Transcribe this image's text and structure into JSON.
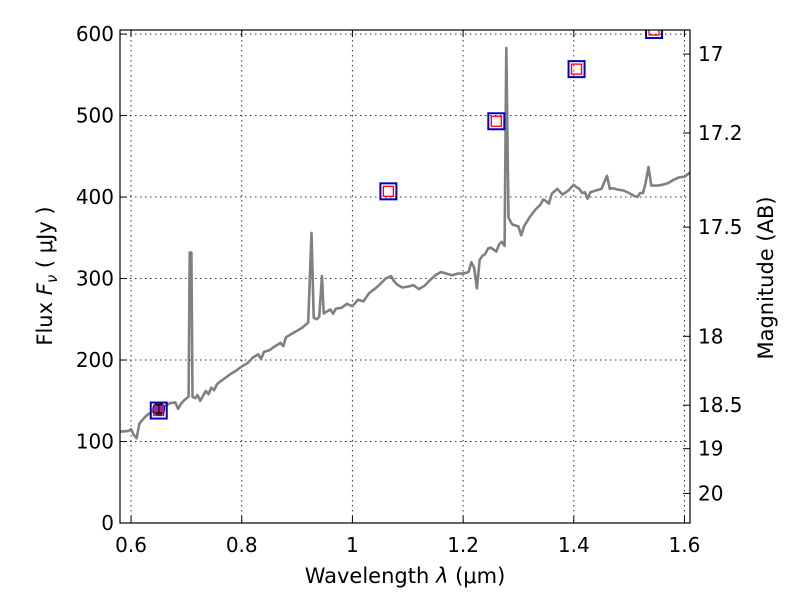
{
  "chart_data": {
    "type": "line",
    "xlabel_prefix": "Wavelength",
    "xlabel_symbol": "λ",
    "xlabel_unit": "(μm)",
    "ylabel_prefix": "Flux",
    "ylabel_symbol": "F",
    "ylabel_subscript": "ν",
    "ylabel_unit": "( μJy )",
    "y2label": "Magnitude (AB)",
    "xlim": [
      0.58,
      1.61
    ],
    "ylim": [
      0,
      605
    ],
    "x_ticks": [
      0.6,
      0.8,
      1.0,
      1.2,
      1.4,
      1.6
    ],
    "x_tick_labels": [
      "0.6",
      "0.8",
      "1",
      "1.2",
      "1.4",
      "1.6"
    ],
    "y_ticks": [
      0,
      100,
      200,
      300,
      400,
      500,
      600
    ],
    "y_tick_labels": [
      "0",
      "100",
      "200",
      "300",
      "400",
      "500",
      "600"
    ],
    "y2_ticks": [
      17,
      17.2,
      17.5,
      18,
      18.5,
      19,
      20
    ],
    "y2_tick_labels": [
      "17",
      "17.2",
      "17.5",
      "18",
      "18.5",
      "19",
      "20"
    ],
    "grid": true,
    "spectrum": {
      "color": "#808080",
      "points": [
        [
          0.58,
          112
        ],
        [
          0.595,
          113
        ],
        [
          0.6,
          115
        ],
        [
          0.605,
          108
        ],
        [
          0.61,
          104
        ],
        [
          0.615,
          122
        ],
        [
          0.62,
          126
        ],
        [
          0.625,
          130
        ],
        [
          0.63,
          133
        ],
        [
          0.64,
          137
        ],
        [
          0.65,
          142
        ],
        [
          0.66,
          143
        ],
        [
          0.67,
          147
        ],
        [
          0.68,
          148
        ],
        [
          0.685,
          140
        ],
        [
          0.69,
          146
        ],
        [
          0.695,
          150
        ],
        [
          0.7,
          153
        ],
        [
          0.704,
          155
        ],
        [
          0.706,
          332
        ],
        [
          0.709,
          332
        ],
        [
          0.711,
          155
        ],
        [
          0.716,
          153
        ],
        [
          0.72,
          157
        ],
        [
          0.725,
          150
        ],
        [
          0.73,
          156
        ],
        [
          0.735,
          162
        ],
        [
          0.74,
          158
        ],
        [
          0.745,
          166
        ],
        [
          0.75,
          163
        ],
        [
          0.755,
          170
        ],
        [
          0.76,
          173
        ],
        [
          0.77,
          178
        ],
        [
          0.78,
          183
        ],
        [
          0.79,
          187
        ],
        [
          0.8,
          192
        ],
        [
          0.81,
          196
        ],
        [
          0.82,
          203
        ],
        [
          0.83,
          207
        ],
        [
          0.835,
          201
        ],
        [
          0.84,
          210
        ],
        [
          0.85,
          212
        ],
        [
          0.86,
          217
        ],
        [
          0.87,
          221
        ],
        [
          0.875,
          217
        ],
        [
          0.88,
          228
        ],
        [
          0.89,
          232
        ],
        [
          0.9,
          236
        ],
        [
          0.91,
          240
        ],
        [
          0.92,
          246
        ],
        [
          0.926,
          356
        ],
        [
          0.93,
          252
        ],
        [
          0.935,
          250
        ],
        [
          0.94,
          253
        ],
        [
          0.945,
          303
        ],
        [
          0.948,
          257
        ],
        [
          0.955,
          260
        ],
        [
          0.96,
          262
        ],
        [
          0.965,
          257
        ],
        [
          0.97,
          263
        ],
        [
          0.98,
          264
        ],
        [
          0.99,
          269
        ],
        [
          1.0,
          266
        ],
        [
          1.01,
          274
        ],
        [
          1.02,
          272
        ],
        [
          1.03,
          282
        ],
        [
          1.04,
          287
        ],
        [
          1.05,
          293
        ],
        [
          1.06,
          300
        ],
        [
          1.07,
          303
        ],
        [
          1.075,
          297
        ],
        [
          1.08,
          293
        ],
        [
          1.09,
          289
        ],
        [
          1.1,
          290
        ],
        [
          1.11,
          292
        ],
        [
          1.12,
          287
        ],
        [
          1.13,
          291
        ],
        [
          1.14,
          298
        ],
        [
          1.15,
          304
        ],
        [
          1.16,
          308
        ],
        [
          1.17,
          306
        ],
        [
          1.18,
          304
        ],
        [
          1.19,
          306
        ],
        [
          1.2,
          306
        ],
        [
          1.21,
          308
        ],
        [
          1.215,
          320
        ],
        [
          1.22,
          313
        ],
        [
          1.225,
          288
        ],
        [
          1.23,
          323
        ],
        [
          1.235,
          328
        ],
        [
          1.24,
          330
        ],
        [
          1.245,
          337
        ],
        [
          1.25,
          338
        ],
        [
          1.26,
          333
        ],
        [
          1.265,
          342
        ],
        [
          1.27,
          345
        ],
        [
          1.275,
          340
        ],
        [
          1.278,
          583
        ],
        [
          1.282,
          375
        ],
        [
          1.287,
          368
        ],
        [
          1.29,
          366
        ],
        [
          1.3,
          364
        ],
        [
          1.305,
          353
        ],
        [
          1.31,
          364
        ],
        [
          1.32,
          375
        ],
        [
          1.33,
          384
        ],
        [
          1.34,
          391
        ],
        [
          1.345,
          397
        ],
        [
          1.35,
          395
        ],
        [
          1.355,
          392
        ],
        [
          1.36,
          404
        ],
        [
          1.37,
          410
        ],
        [
          1.38,
          403
        ],
        [
          1.39,
          408
        ],
        [
          1.4,
          415
        ],
        [
          1.405,
          412
        ],
        [
          1.41,
          410
        ],
        [
          1.415,
          405
        ],
        [
          1.42,
          406
        ],
        [
          1.425,
          398
        ],
        [
          1.43,
          406
        ],
        [
          1.44,
          408
        ],
        [
          1.45,
          410
        ],
        [
          1.455,
          418
        ],
        [
          1.46,
          426
        ],
        [
          1.465,
          410
        ],
        [
          1.47,
          411
        ],
        [
          1.48,
          409
        ],
        [
          1.49,
          408
        ],
        [
          1.5,
          405
        ],
        [
          1.51,
          401
        ],
        [
          1.515,
          400
        ],
        [
          1.52,
          405
        ],
        [
          1.525,
          405
        ],
        [
          1.53,
          418
        ],
        [
          1.535,
          437
        ],
        [
          1.54,
          414
        ],
        [
          1.55,
          414
        ],
        [
          1.56,
          415
        ],
        [
          1.57,
          417
        ],
        [
          1.58,
          421
        ],
        [
          1.59,
          424
        ],
        [
          1.6,
          425
        ],
        [
          1.61,
          430
        ]
      ]
    },
    "photometry": {
      "box_outer_color": "#0000cc",
      "box_inner_color": "#ff0000",
      "points": [
        {
          "x": 0.65,
          "y": 138
        },
        {
          "x": 1.065,
          "y": 407
        },
        {
          "x": 1.26,
          "y": 493
        },
        {
          "x": 1.405,
          "y": 557
        },
        {
          "x": 1.545,
          "y": 605
        }
      ]
    },
    "measured_point": {
      "x": 0.65,
      "y": 140,
      "yerr": 5,
      "color": "#aa22aa",
      "edge_color": "#000000"
    }
  }
}
